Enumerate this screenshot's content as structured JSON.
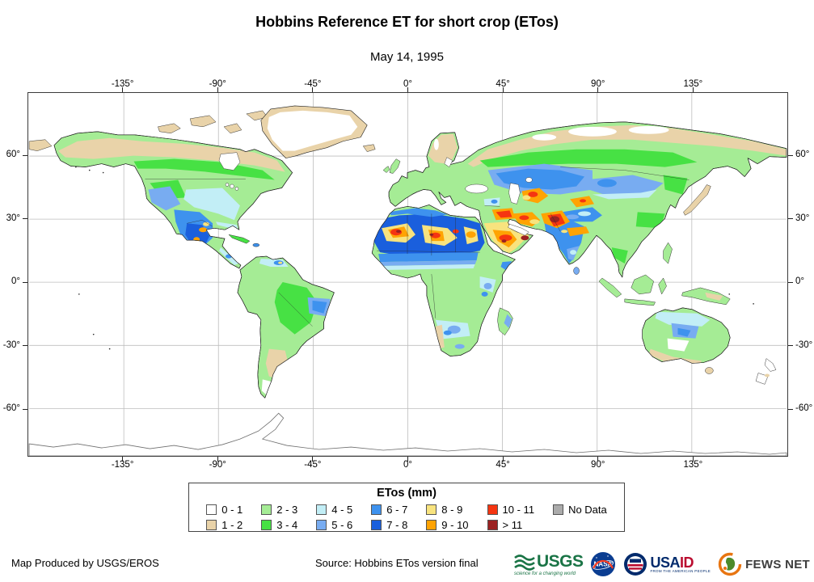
{
  "title": "Hobbins Reference ET for short crop (ETos)",
  "subtitle": "May 14, 1995",
  "map": {
    "lon_labels": [
      "-135°",
      "-90°",
      "-45°",
      "0°",
      "45°",
      "90°",
      "135°"
    ],
    "lat_labels": [
      "60°",
      "30°",
      "0°",
      "-30°",
      "-60°"
    ]
  },
  "legend": {
    "title": "ETos (mm)",
    "items": [
      {
        "label": "0 - 1",
        "color": "#ffffff"
      },
      {
        "label": "1 - 2",
        "color": "#e9d3a9"
      },
      {
        "label": "2 - 3",
        "color": "#a5ec95"
      },
      {
        "label": "3 - 4",
        "color": "#47e144"
      },
      {
        "label": "4 - 5",
        "color": "#c2eef6"
      },
      {
        "label": "5 - 6",
        "color": "#78acf1"
      },
      {
        "label": "6 - 7",
        "color": "#3e92ee"
      },
      {
        "label": "7 - 8",
        "color": "#1a5fdd"
      },
      {
        "label": "8 - 9",
        "color": "#f8e37e"
      },
      {
        "label": "9 - 10",
        "color": "#ffa303"
      },
      {
        "label": "10 - 11",
        "color": "#f53511"
      },
      {
        "label": "> 11",
        "color": "#9b2222"
      },
      {
        "label": "No Data",
        "color": "#ababab"
      }
    ]
  },
  "footer": {
    "credit": "Map Produced by USGS/EROS",
    "source": "Source: Hobbins ETos version final",
    "logos": {
      "usgs": {
        "name": "USGS",
        "tagline": "science for a changing world"
      },
      "nasa": {
        "name": "NASA"
      },
      "usaid": {
        "name": "USAID",
        "tagline": "FROM THE AMERICAN PEOPLE"
      },
      "fewsnet": {
        "name": "FEWS NET"
      }
    }
  }
}
